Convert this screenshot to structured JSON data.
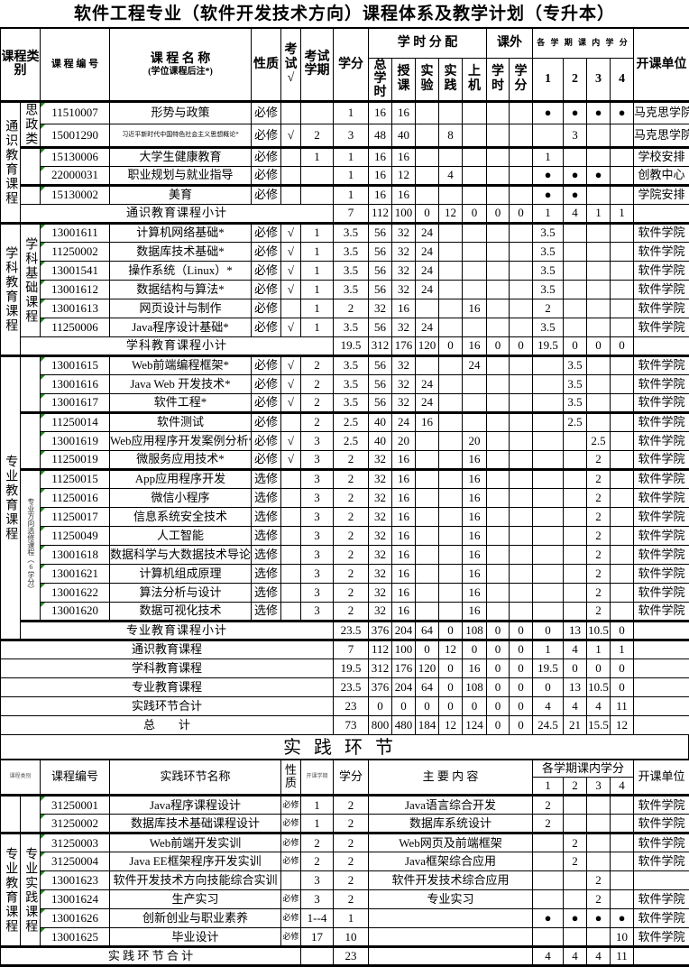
{
  "title": "软件工程专业（软件开发技术方向）课程体系及教学计划（专升本）",
  "main": {
    "header": {
      "category": "课程类别",
      "code": "课 程 编 号",
      "name": "课 程 名 称",
      "name_note": "(学位课程后注*)",
      "nature": "性质",
      "exam": "考试√",
      "exam_term": "考试学期",
      "credit": "学分",
      "hours": "学 时 分 配",
      "extra": "课外",
      "terms": "各 学 期 课 内 学 分",
      "dept": "开课单位",
      "sub": [
        "总学时",
        "授课",
        "实验",
        "实践",
        "上机",
        "学时",
        "学分",
        "1",
        "2",
        "3",
        "4"
      ]
    },
    "groups": [
      {
        "category": "通识教育课程",
        "subgroups": [
          {
            "label": "思政类",
            "rows": [
              [
                "11510007",
                "形势与政策",
                "必修",
                "",
                "",
                "1",
                "16",
                "16",
                "",
                "",
                "",
                "",
                "",
                "●",
                "●",
                "●",
                "●",
                "马克思学院"
              ],
              [
                "15001290",
                "习近平新时代中国特色社会主义思想概论*",
                "必修",
                "√",
                "2",
                "3",
                "48",
                "40",
                "",
                "8",
                "",
                "",
                "",
                "",
                "3",
                "",
                "",
                "马克思学院"
              ]
            ]
          },
          {
            "label": "",
            "rows": [
              [
                "15130006",
                "大学生健康教育",
                "必修",
                "",
                "1",
                "1",
                "16",
                "16",
                "",
                "",
                "",
                "",
                "",
                "1",
                "",
                "",
                "",
                "学校安排"
              ],
              [
                "22000031",
                "职业规划与就业指导",
                "必修",
                "",
                "",
                "1",
                "16",
                "12",
                "",
                "4",
                "",
                "",
                "",
                "●",
                "●",
                "●",
                "",
                "创教中心"
              ]
            ]
          },
          {
            "label": "",
            "rows": [
              [
                "15130002",
                "美育",
                "必修",
                "",
                "",
                "1",
                "16",
                "16",
                "",
                "",
                "",
                "",
                "",
                "●",
                "●",
                "",
                "",
                "学院安排"
              ]
            ]
          }
        ],
        "subtotal": {
          "label": "通识教育课程小计",
          "values": [
            "7",
            "112",
            "100",
            "0",
            "12",
            "0",
            "0",
            "0",
            "1",
            "4",
            "1",
            "1"
          ]
        }
      },
      {
        "category": "学科教育课程",
        "subgroups": [
          {
            "label": "学科基础课程",
            "rows": [
              [
                "13001611",
                "计算机网络基础*",
                "必修",
                "√",
                "1",
                "3.5",
                "56",
                "32",
                "24",
                "",
                "",
                "",
                "",
                "3.5",
                "",
                "",
                "",
                "软件学院"
              ],
              [
                "11250002",
                "数据库技术基础*",
                "必修",
                "√",
                "1",
                "3.5",
                "56",
                "32",
                "24",
                "",
                "",
                "",
                "",
                "3.5",
                "",
                "",
                "",
                "软件学院"
              ],
              [
                "13001541",
                "操作系统（Linux）*",
                "必修",
                "√",
                "1",
                "3.5",
                "56",
                "32",
                "24",
                "",
                "",
                "",
                "",
                "3.5",
                "",
                "",
                "",
                "软件学院"
              ],
              [
                "13001612",
                "数据结构与算法*",
                "必修",
                "√",
                "1",
                "3.5",
                "56",
                "32",
                "24",
                "",
                "",
                "",
                "",
                "3.5",
                "",
                "",
                "",
                "软件学院"
              ],
              [
                "13001613",
                "网页设计与制作",
                "必修",
                "",
                "1",
                "2",
                "32",
                "16",
                "",
                "",
                "16",
                "",
                "",
                "2",
                "",
                "",
                "",
                "软件学院"
              ],
              [
                "11250006",
                "Java程序设计基础*",
                "必修",
                "√",
                "1",
                "3.5",
                "56",
                "32",
                "24",
                "",
                "",
                "",
                "",
                "3.5",
                "",
                "",
                "",
                "软件学院"
              ]
            ]
          }
        ],
        "subtotal": {
          "label": "学科教育课程小计",
          "values": [
            "19.5",
            "312",
            "176",
            "120",
            "0",
            "16",
            "0",
            "0",
            "19.5",
            "0",
            "0",
            "0"
          ]
        }
      },
      {
        "category": "专业教育课程",
        "subgroups": [
          {
            "label": "",
            "rows": [
              [
                "13001615",
                "Web前端编程框架*",
                "必修",
                "√",
                "2",
                "3.5",
                "56",
                "32",
                "",
                "",
                "24",
                "",
                "",
                "",
                "3.5",
                "",
                "",
                "软件学院"
              ],
              [
                "13001616",
                "Java Web 开发技术*",
                "必修",
                "√",
                "2",
                "3.5",
                "56",
                "32",
                "24",
                "",
                "",
                "",
                "",
                "",
                "3.5",
                "",
                "",
                "软件学院"
              ],
              [
                "13001617",
                "软件工程*",
                "必修",
                "√",
                "2",
                "3.5",
                "56",
                "32",
                "24",
                "",
                "",
                "",
                "",
                "",
                "3.5",
                "",
                "",
                "软件学院"
              ]
            ]
          },
          {
            "label": "",
            "rows": [
              [
                "11250014",
                "软件测试",
                "必修",
                "",
                "2",
                "2.5",
                "40",
                "24",
                "16",
                "",
                "",
                "",
                "",
                "",
                "2.5",
                "",
                "",
                "软件学院"
              ],
              [
                "13001619",
                "Web应用程序开发案例分析*",
                "必修",
                "√",
                "3",
                "2.5",
                "40",
                "20",
                "",
                "",
                "20",
                "",
                "",
                "",
                "",
                "2.5",
                "",
                "软件学院"
              ],
              [
                "11250019",
                "微服务应用技术*",
                "必修",
                "√",
                "3",
                "2",
                "32",
                "16",
                "",
                "",
                "16",
                "",
                "",
                "",
                "",
                "2",
                "",
                "软件学院"
              ]
            ]
          },
          {
            "label": "专业方向选修课程（6学分）",
            "rows": [
              [
                "11250015",
                "App应用程序开发",
                "选修",
                "",
                "3",
                "2",
                "32",
                "16",
                "",
                "",
                "16",
                "",
                "",
                "",
                "",
                "2",
                "",
                "软件学院"
              ],
              [
                "11250016",
                "微信小程序",
                "选修",
                "",
                "3",
                "2",
                "32",
                "16",
                "",
                "",
                "16",
                "",
                "",
                "",
                "",
                "2",
                "",
                "软件学院"
              ],
              [
                "11250017",
                "信息系统安全技术",
                "选修",
                "",
                "3",
                "2",
                "32",
                "16",
                "",
                "",
                "16",
                "",
                "",
                "",
                "",
                "2",
                "",
                "软件学院"
              ],
              [
                "11250049",
                "人工智能",
                "选修",
                "",
                "3",
                "2",
                "32",
                "16",
                "",
                "",
                "16",
                "",
                "",
                "",
                "",
                "2",
                "",
                "软件学院"
              ],
              [
                "13001618",
                "数据科学与大数据技术导论",
                "选修",
                "",
                "3",
                "2",
                "32",
                "16",
                "",
                "",
                "16",
                "",
                "",
                "",
                "",
                "2",
                "",
                "软件学院"
              ],
              [
                "13001621",
                "计算机组成原理",
                "选修",
                "",
                "3",
                "2",
                "32",
                "16",
                "",
                "",
                "16",
                "",
                "",
                "",
                "",
                "2",
                "",
                "软件学院"
              ],
              [
                "13001622",
                "算法分析与设计",
                "选修",
                "",
                "3",
                "2",
                "32",
                "16",
                "",
                "",
                "16",
                "",
                "",
                "",
                "",
                "2",
                "",
                "软件学院"
              ],
              [
                "13001620",
                "数据可视化技术",
                "选修",
                "",
                "3",
                "2",
                "32",
                "16",
                "",
                "",
                "16",
                "",
                "",
                "",
                "",
                "2",
                "",
                "软件学院"
              ]
            ]
          }
        ],
        "subtotal": {
          "label": "专业教育课程小计",
          "values": [
            "23.5",
            "376",
            "204",
            "64",
            "0",
            "108",
            "0",
            "0",
            "0",
            "13",
            "10.5",
            "0"
          ]
        }
      }
    ],
    "totals": [
      {
        "label": "通识教育课程",
        "values": [
          "7",
          "112",
          "100",
          "0",
          "12",
          "0",
          "0",
          "0",
          "1",
          "4",
          "1",
          "1"
        ]
      },
      {
        "label": "学科教育课程",
        "values": [
          "19.5",
          "312",
          "176",
          "120",
          "0",
          "16",
          "0",
          "0",
          "19.5",
          "0",
          "0",
          "0"
        ]
      },
      {
        "label": "专业教育课程",
        "values": [
          "23.5",
          "376",
          "204",
          "64",
          "0",
          "108",
          "0",
          "0",
          "0",
          "13",
          "10.5",
          "0"
        ]
      },
      {
        "label": "实践环节合计",
        "values": [
          "23",
          "0",
          "0",
          "0",
          "0",
          "0",
          "0",
          "0",
          "4",
          "4",
          "4",
          "11"
        ]
      },
      {
        "label": "总　　计",
        "values": [
          "73",
          "800",
          "480",
          "184",
          "12",
          "124",
          "0",
          "0",
          "24.5",
          "21",
          "15.5",
          "12"
        ]
      }
    ]
  },
  "practice": {
    "heading": "实践环节",
    "header": {
      "category": "课程类别",
      "code": "课程编号",
      "name": "实践环节名称",
      "nature": "性质",
      "term": "开课学期",
      "credit": "学分",
      "content": "主 要 内 容",
      "terms": "各学期课内学分",
      "term_numbers": [
        "1",
        "2",
        "3",
        "4"
      ],
      "dept": "开课单位"
    },
    "groups": [
      {
        "category": "",
        "subcategory": "",
        "rows": [
          [
            "31250001",
            "Java程序课程设计",
            "必修",
            "1",
            "2",
            "Java语言综合开发",
            "2",
            "",
            "",
            "",
            "软件学院"
          ],
          [
            "31250002",
            "数据库技术基础课程设计",
            "必修",
            "1",
            "2",
            "数据库系统设计",
            "2",
            "",
            "",
            "",
            "软件学院"
          ]
        ]
      },
      {
        "category": "专业教育课程",
        "subcategory": "专业实践课程",
        "rows": [
          [
            "31250003",
            "Web前端开发实训",
            "必修",
            "2",
            "2",
            "Web网页及前端框架",
            "",
            "2",
            "",
            "",
            "软件学院"
          ],
          [
            "31250004",
            "Java EE框架程序开发实训",
            "必修",
            "2",
            "2",
            "Java框架综合应用",
            "",
            "2",
            "",
            "",
            "软件学院"
          ],
          [
            "13001623",
            "软件开发技术方向技能综合实训",
            "",
            "3",
            "2",
            "软件开发技术综合应用",
            "",
            "",
            "2",
            "",
            ""
          ],
          [
            "13001624",
            "生产实习",
            "必修",
            "3",
            "2",
            "专业实习",
            "",
            "",
            "2",
            "",
            "软件学院"
          ],
          [
            "13001626",
            "创新创业与职业素养",
            "必修",
            "1--4",
            "1",
            "",
            "●",
            "●",
            "●",
            "●",
            "软件学院"
          ],
          [
            "13001625",
            "毕业设计",
            "必修",
            "17",
            "10",
            "",
            "",
            "",
            "",
            "10",
            "软件学院"
          ]
        ]
      }
    ],
    "total": {
      "label": "实 践 环 节 合 计",
      "credit": "23",
      "terms": [
        "4",
        "4",
        "4",
        "11"
      ]
    }
  }
}
